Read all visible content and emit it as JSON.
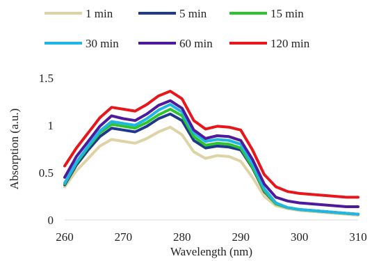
{
  "chart_data": {
    "type": "line",
    "title": "",
    "xlabel": "Wavelength (nm)",
    "ylabel": "Absorption (a.u.)",
    "xlim": [
      260,
      310
    ],
    "ylim": [
      0,
      1.5
    ],
    "x_ticks": [
      260,
      270,
      280,
      290,
      300,
      310
    ],
    "x_tick_labels": [
      "260",
      "270",
      "280",
      "290",
      "300",
      "310"
    ],
    "y_ticks": [
      0,
      0.5,
      1,
      1.5
    ],
    "y_tick_labels": [
      "0",
      "0.5",
      "1",
      "1.5"
    ],
    "grid": false,
    "legend_position": "top",
    "x": [
      260,
      262,
      264,
      266,
      268,
      270,
      272,
      274,
      276,
      278,
      280,
      282,
      284,
      286,
      288,
      290,
      292,
      294,
      296,
      298,
      300,
      302,
      304,
      306,
      308,
      310
    ],
    "series": [
      {
        "name": "1 min",
        "color": "#ddd3a4",
        "values": [
          0.35,
          0.52,
          0.65,
          0.78,
          0.85,
          0.83,
          0.81,
          0.86,
          0.93,
          0.98,
          0.9,
          0.72,
          0.65,
          0.68,
          0.67,
          0.62,
          0.45,
          0.25,
          0.15,
          0.12,
          0.1,
          0.09,
          0.08,
          0.07,
          0.06,
          0.05
        ]
      },
      {
        "name": "5 min",
        "color": "#1f3a8c",
        "values": [
          0.37,
          0.58,
          0.74,
          0.88,
          0.97,
          0.95,
          0.93,
          0.99,
          1.07,
          1.12,
          1.05,
          0.84,
          0.76,
          0.78,
          0.77,
          0.74,
          0.55,
          0.3,
          0.17,
          0.13,
          0.11,
          0.1,
          0.09,
          0.08,
          0.07,
          0.06
        ]
      },
      {
        "name": "15 min",
        "color": "#2ec42e",
        "values": [
          0.38,
          0.6,
          0.77,
          0.92,
          1.01,
          0.99,
          0.97,
          1.03,
          1.11,
          1.17,
          1.1,
          0.88,
          0.79,
          0.81,
          0.8,
          0.76,
          0.56,
          0.31,
          0.17,
          0.13,
          0.11,
          0.1,
          0.09,
          0.08,
          0.07,
          0.06
        ]
      },
      {
        "name": "30 min",
        "color": "#1fb6e6",
        "values": [
          0.39,
          0.61,
          0.78,
          0.94,
          1.04,
          1.02,
          1.0,
          1.07,
          1.16,
          1.22,
          1.14,
          0.92,
          0.83,
          0.85,
          0.84,
          0.8,
          0.59,
          0.33,
          0.18,
          0.13,
          0.11,
          0.1,
          0.09,
          0.08,
          0.07,
          0.06
        ]
      },
      {
        "name": "60 min",
        "color": "#4d1a9e",
        "values": [
          0.45,
          0.67,
          0.83,
          0.99,
          1.1,
          1.07,
          1.05,
          1.12,
          1.21,
          1.26,
          1.18,
          0.95,
          0.86,
          0.89,
          0.88,
          0.84,
          0.64,
          0.38,
          0.24,
          0.2,
          0.18,
          0.17,
          0.16,
          0.15,
          0.14,
          0.14
        ]
      },
      {
        "name": "120 min",
        "color": "#e8161b",
        "values": [
          0.57,
          0.76,
          0.92,
          1.08,
          1.19,
          1.17,
          1.15,
          1.22,
          1.31,
          1.36,
          1.28,
          1.05,
          0.96,
          0.99,
          0.98,
          0.95,
          0.74,
          0.48,
          0.35,
          0.3,
          0.28,
          0.27,
          0.26,
          0.25,
          0.24,
          0.24
        ]
      }
    ]
  }
}
